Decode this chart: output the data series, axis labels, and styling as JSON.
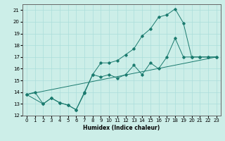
{
  "xlabel": "Humidex (Indice chaleur)",
  "ylabel": "",
  "bg_color": "#cceee8",
  "line_color": "#1a7a6e",
  "grid_color": "#aaddda",
  "xlim": [
    -0.5,
    23.5
  ],
  "ylim": [
    12,
    21.5
  ],
  "xticks": [
    0,
    1,
    2,
    3,
    4,
    5,
    6,
    7,
    8,
    9,
    10,
    11,
    12,
    13,
    14,
    15,
    16,
    17,
    18,
    19,
    20,
    21,
    22,
    23
  ],
  "yticks": [
    12,
    13,
    14,
    15,
    16,
    17,
    18,
    19,
    20,
    21
  ],
  "line1_x": [
    0,
    1,
    2,
    3,
    4,
    5,
    6,
    7,
    8,
    9,
    10,
    11,
    12,
    13,
    14,
    15,
    16,
    17,
    18,
    19,
    20,
    21,
    22,
    23
  ],
  "line1_y": [
    13.8,
    14.0,
    13.0,
    13.5,
    13.1,
    12.9,
    12.5,
    14.0,
    15.5,
    15.3,
    15.5,
    15.2,
    15.5,
    16.3,
    15.5,
    16.5,
    16.0,
    17.0,
    18.6,
    17.0,
    17.0,
    17.0,
    17.0,
    17.0
  ],
  "line2_x": [
    0,
    2,
    3,
    4,
    5,
    6,
    7,
    8,
    9,
    10,
    11,
    12,
    13,
    14,
    15,
    16,
    17,
    18,
    19,
    20,
    21,
    22,
    23
  ],
  "line2_y": [
    13.8,
    13.0,
    13.5,
    13.1,
    12.9,
    12.5,
    13.9,
    15.5,
    16.5,
    16.5,
    16.7,
    17.2,
    17.7,
    18.8,
    19.4,
    20.4,
    20.6,
    21.1,
    19.9,
    17.0,
    17.0,
    17.0,
    17.0
  ],
  "line3_x": [
    0,
    23
  ],
  "line3_y": [
    13.8,
    17.0
  ]
}
